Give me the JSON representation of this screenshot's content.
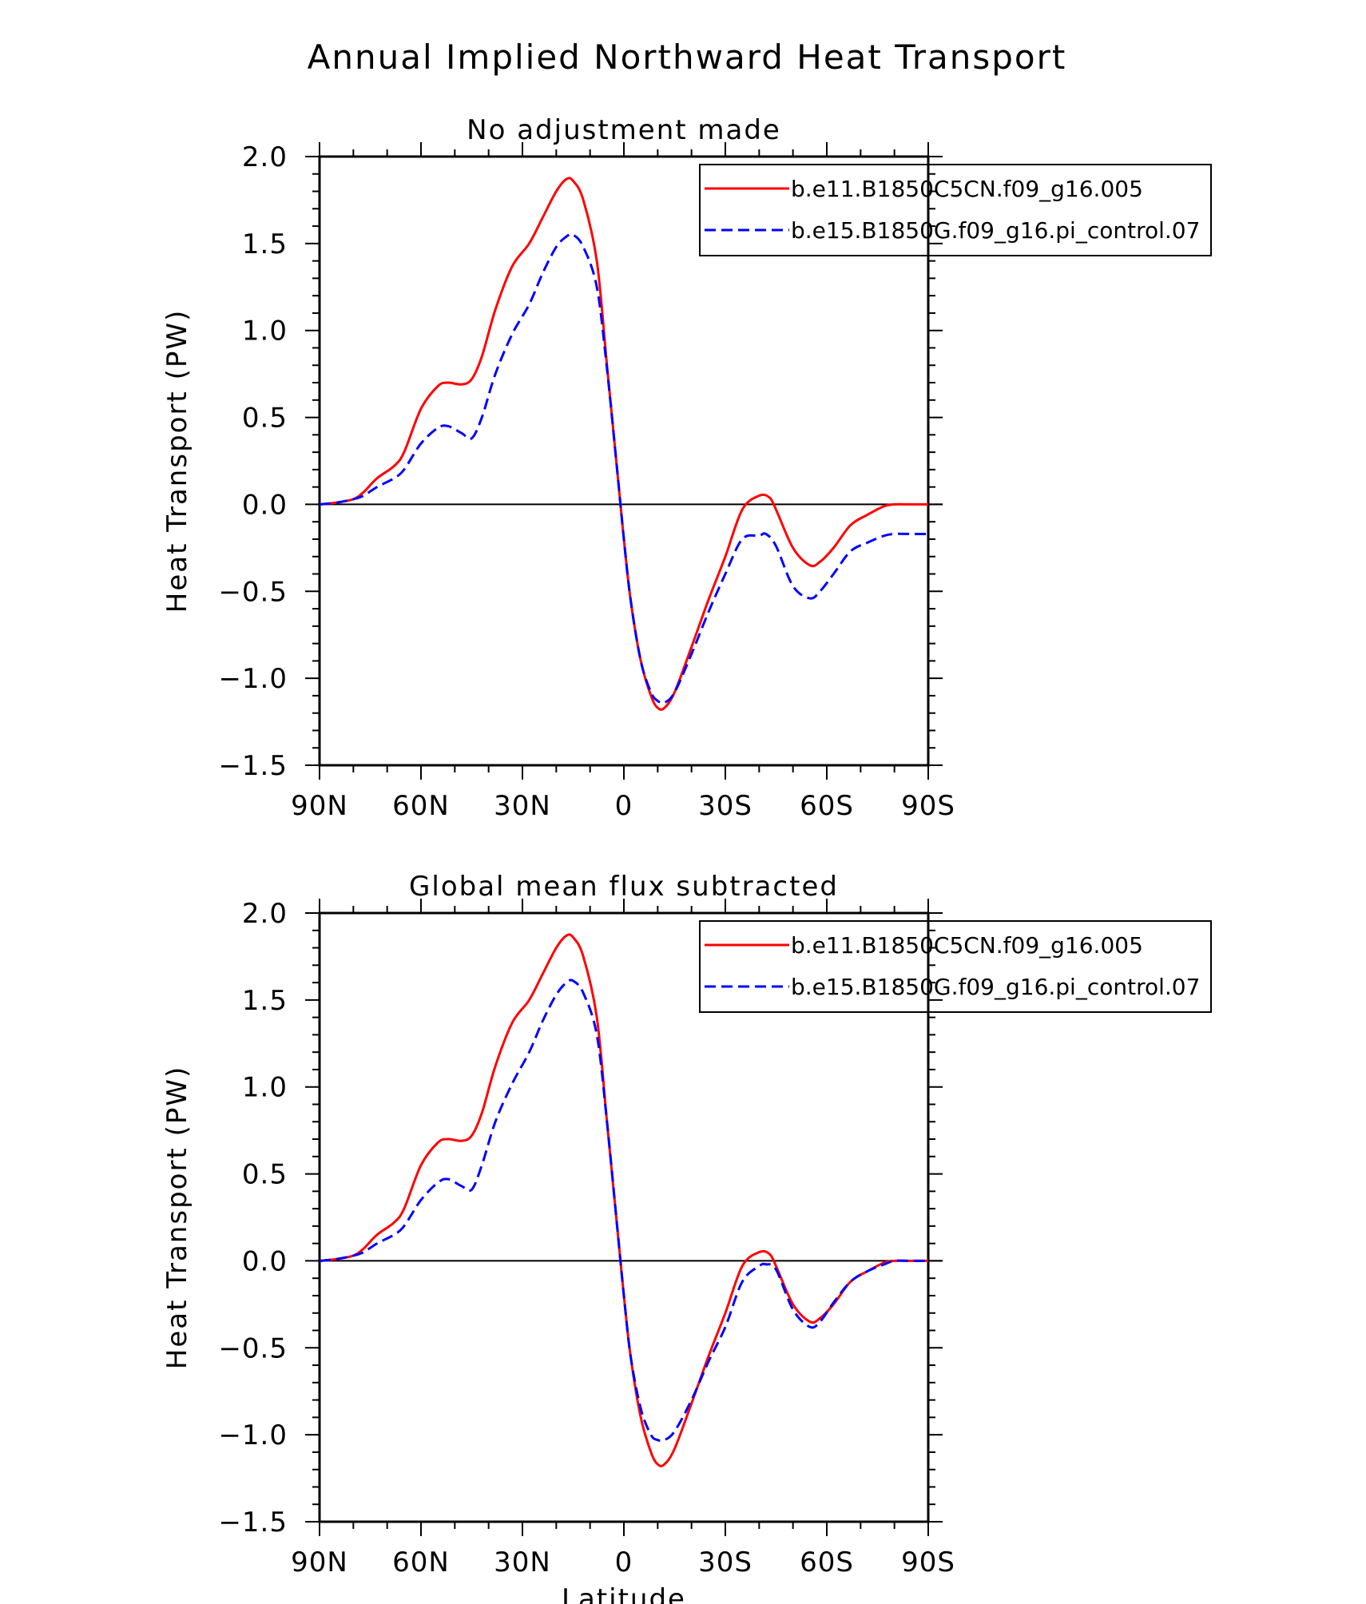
{
  "figure": {
    "title": "Annual Implied Northward Heat Transport"
  },
  "chart_data": [
    {
      "type": "line",
      "title": "No adjustment made",
      "xlabel": "",
      "ylabel": "Heat Transport (PW)",
      "xlim": [
        90,
        -90
      ],
      "ylim": [
        -1.5,
        2.0
      ],
      "x_ticks": [
        90,
        60,
        30,
        0,
        -30,
        -60,
        -90
      ],
      "x_tick_labels": [
        "90N",
        "60N",
        "30N",
        "0",
        "30S",
        "60S",
        "90S"
      ],
      "y_ticks": [
        2.0,
        1.5,
        1.0,
        0.5,
        0.0,
        -0.5,
        -1.0,
        -1.5
      ],
      "y_tick_labels": [
        "2.0",
        "1.5",
        "1.0",
        "0.5",
        "0.0",
        "−0.5",
        "−1.0",
        "−1.5"
      ],
      "zero_line": true,
      "grid": false,
      "legend": "top-right",
      "series": [
        {
          "name": "b.e11.B1850C5CN.f09_g16.005",
          "color": "#ff0000",
          "style": "solid",
          "x": [
            90,
            85,
            80,
            77,
            73,
            68,
            65,
            60,
            55,
            52,
            48,
            45,
            42,
            38,
            33,
            28,
            24,
            20,
            17,
            15,
            12,
            8,
            5,
            2,
            0,
            -2,
            -5,
            -8,
            -10,
            -12,
            -15,
            -20,
            -25,
            -30,
            -35,
            -40,
            -43,
            -45,
            -50,
            -55,
            -58,
            -62,
            -67,
            -72,
            -77,
            -80,
            -85,
            -90
          ],
          "y": [
            0.0,
            0.01,
            0.03,
            0.07,
            0.15,
            0.22,
            0.3,
            0.55,
            0.68,
            0.7,
            0.69,
            0.72,
            0.85,
            1.12,
            1.37,
            1.5,
            1.65,
            1.8,
            1.87,
            1.86,
            1.75,
            1.4,
            0.8,
            0.2,
            -0.2,
            -0.55,
            -0.9,
            -1.1,
            -1.17,
            -1.17,
            -1.08,
            -0.82,
            -0.55,
            -0.3,
            -0.03,
            0.05,
            0.04,
            -0.03,
            -0.25,
            -0.35,
            -0.33,
            -0.25,
            -0.12,
            -0.06,
            -0.01,
            0.0,
            0.0,
            0.0
          ]
        },
        {
          "name": "b.e15.B1850G.f09_g16.pi_control.07",
          "color": "#0000ff",
          "style": "dashed",
          "x": [
            90,
            85,
            80,
            77,
            73,
            68,
            65,
            60,
            55,
            52,
            48,
            45,
            42,
            38,
            33,
            28,
            24,
            20,
            17,
            15,
            12,
            8,
            5,
            2,
            0,
            -2,
            -5,
            -8,
            -10,
            -12,
            -15,
            -20,
            -25,
            -30,
            -35,
            -40,
            -42,
            -45,
            -50,
            -55,
            -58,
            -62,
            -67,
            -72,
            -77,
            -80,
            -85,
            -90
          ],
          "y": [
            0.0,
            0.01,
            0.03,
            0.05,
            0.1,
            0.15,
            0.2,
            0.35,
            0.44,
            0.45,
            0.41,
            0.38,
            0.5,
            0.75,
            0.98,
            1.15,
            1.33,
            1.48,
            1.54,
            1.55,
            1.48,
            1.25,
            0.78,
            0.2,
            -0.2,
            -0.55,
            -0.9,
            -1.08,
            -1.13,
            -1.14,
            -1.08,
            -0.86,
            -0.62,
            -0.4,
            -0.2,
            -0.18,
            -0.17,
            -0.24,
            -0.47,
            -0.54,
            -0.5,
            -0.4,
            -0.27,
            -0.22,
            -0.18,
            -0.17,
            -0.17,
            -0.17
          ]
        }
      ]
    },
    {
      "type": "line",
      "title": "Global mean flux subtracted",
      "xlabel": "Latitude",
      "ylabel": "Heat Transport (PW)",
      "xlim": [
        90,
        -90
      ],
      "ylim": [
        -1.5,
        2.0
      ],
      "x_ticks": [
        90,
        60,
        30,
        0,
        -30,
        -60,
        -90
      ],
      "x_tick_labels": [
        "90N",
        "60N",
        "30N",
        "0",
        "30S",
        "60S",
        "90S"
      ],
      "y_ticks": [
        2.0,
        1.5,
        1.0,
        0.5,
        0.0,
        -0.5,
        -1.0,
        -1.5
      ],
      "y_tick_labels": [
        "2.0",
        "1.5",
        "1.0",
        "0.5",
        "0.0",
        "−0.5",
        "−1.0",
        "−1.5"
      ],
      "zero_line": true,
      "grid": false,
      "legend": "top-right",
      "series": [
        {
          "name": "b.e11.B1850C5CN.f09_g16.005",
          "color": "#ff0000",
          "style": "solid",
          "x": [
            90,
            85,
            80,
            77,
            73,
            68,
            65,
            60,
            55,
            52,
            48,
            45,
            42,
            38,
            33,
            28,
            24,
            20,
            17,
            15,
            12,
            8,
            5,
            2,
            0,
            -2,
            -5,
            -8,
            -10,
            -12,
            -15,
            -20,
            -25,
            -30,
            -35,
            -40,
            -43,
            -45,
            -50,
            -55,
            -58,
            -62,
            -67,
            -72,
            -77,
            -80,
            -85,
            -90
          ],
          "y": [
            0.0,
            0.01,
            0.03,
            0.07,
            0.15,
            0.22,
            0.3,
            0.55,
            0.68,
            0.7,
            0.69,
            0.72,
            0.85,
            1.12,
            1.37,
            1.5,
            1.65,
            1.8,
            1.87,
            1.86,
            1.75,
            1.4,
            0.8,
            0.2,
            -0.2,
            -0.55,
            -0.9,
            -1.1,
            -1.17,
            -1.17,
            -1.08,
            -0.82,
            -0.55,
            -0.3,
            -0.03,
            0.05,
            0.04,
            -0.03,
            -0.25,
            -0.35,
            -0.33,
            -0.25,
            -0.12,
            -0.06,
            -0.01,
            0.0,
            0.0,
            0.0
          ]
        },
        {
          "name": "b.e15.B1850G.f09_g16.pi_control.07",
          "color": "#0000ff",
          "style": "dashed",
          "x": [
            90,
            85,
            80,
            77,
            73,
            68,
            65,
            60,
            55,
            52,
            48,
            45,
            42,
            38,
            33,
            28,
            24,
            20,
            17,
            15,
            12,
            8,
            5,
            2,
            0,
            -2,
            -5,
            -8,
            -10,
            -12,
            -15,
            -20,
            -25,
            -30,
            -35,
            -40,
            -42,
            -45,
            -50,
            -55,
            -58,
            -62,
            -67,
            -72,
            -77,
            -80,
            -85,
            -90
          ],
          "y": [
            0.0,
            0.01,
            0.03,
            0.05,
            0.1,
            0.15,
            0.2,
            0.35,
            0.45,
            0.47,
            0.43,
            0.41,
            0.55,
            0.8,
            1.02,
            1.2,
            1.38,
            1.53,
            1.6,
            1.61,
            1.54,
            1.3,
            0.8,
            0.2,
            -0.2,
            -0.55,
            -0.85,
            -1.0,
            -1.03,
            -1.03,
            -0.98,
            -0.8,
            -0.58,
            -0.38,
            -0.12,
            -0.03,
            -0.02,
            -0.05,
            -0.28,
            -0.38,
            -0.35,
            -0.24,
            -0.12,
            -0.06,
            -0.02,
            0.0,
            0.0,
            0.0
          ]
        }
      ]
    }
  ]
}
